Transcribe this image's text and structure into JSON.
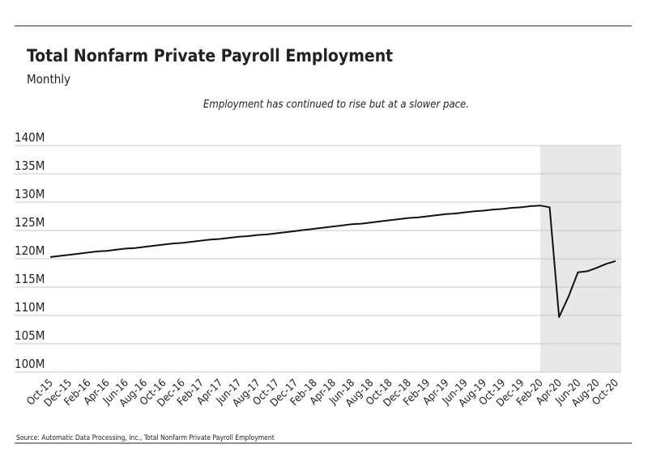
{
  "chart_data": {
    "type": "line",
    "title": "Total Nonfarm Private Payroll Employment",
    "subtitle": "Monthly",
    "annotation": "Employment has continued to rise but at a slower pace.",
    "source": "Source:  Automatic Data Processing, Inc., Total Nonfarm Private Payroll Employment",
    "categories": [
      "Oct-15",
      null,
      "Dec-15",
      null,
      "Feb-16",
      null,
      "Apr-16",
      null,
      "Jun-16",
      null,
      "Aug-16",
      null,
      "Oct-16",
      null,
      "Dec-16",
      null,
      "Feb-17",
      null,
      "Apr-17",
      null,
      "Jun-17",
      null,
      "Aug-17",
      null,
      "Oct-17",
      null,
      "Dec-17",
      null,
      "Feb-18",
      null,
      "Apr-18",
      null,
      "Jun-18",
      null,
      "Aug-18",
      null,
      "Oct-18",
      null,
      "Dec-18",
      null,
      "Feb-19",
      null,
      "Apr-19",
      null,
      "Jun-19",
      null,
      "Aug-19",
      null,
      "Oct-19",
      null,
      "Dec-19",
      null,
      "Feb-20",
      null,
      "Apr-20",
      null,
      "Jun-20",
      null,
      "Aug-20",
      null,
      "Oct-20"
    ],
    "values": [
      120.3,
      120.5,
      120.7,
      120.9,
      121.1,
      121.3,
      121.4,
      121.6,
      121.8,
      121.9,
      122.1,
      122.3,
      122.5,
      122.7,
      122.8,
      123.0,
      123.2,
      123.4,
      123.5,
      123.7,
      123.9,
      124.0,
      124.2,
      124.3,
      124.5,
      124.7,
      124.9,
      125.1,
      125.3,
      125.5,
      125.7,
      125.9,
      126.1,
      126.2,
      126.4,
      126.6,
      126.8,
      127.0,
      127.2,
      127.3,
      127.5,
      127.7,
      127.9,
      128.0,
      128.2,
      128.4,
      128.5,
      128.7,
      128.8,
      129.0,
      129.1,
      129.3,
      129.4,
      129.1,
      109.7,
      113.3,
      117.6,
      117.8,
      118.4,
      119.1,
      119.6
    ],
    "color": "#111111",
    "ylim": [
      100,
      140
    ],
    "yticks": [
      {
        "value": 100,
        "label": "100M"
      },
      {
        "value": 105,
        "label": "105M"
      },
      {
        "value": 110,
        "label": "110M"
      },
      {
        "value": 115,
        "label": "115M"
      },
      {
        "value": 120,
        "label": "120M"
      },
      {
        "value": 125,
        "label": "125M"
      },
      {
        "value": 130,
        "label": "130M"
      },
      {
        "value": 135,
        "label": "135M"
      },
      {
        "value": 140,
        "label": "140M"
      }
    ],
    "grid": true,
    "shade": {
      "from": 52,
      "to": 60,
      "color": "#e8e8e8"
    }
  }
}
